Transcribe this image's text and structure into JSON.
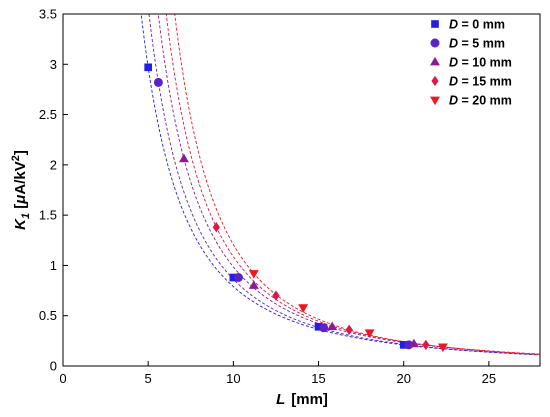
{
  "chart_data": {
    "type": "scatter",
    "xlabel": {
      "var": "L",
      "unit": "[mm]"
    },
    "ylabel": {
      "var": "K",
      "sub": "1",
      "unit_open": " [",
      "mu": "μ",
      "unit_mid": "A/kV",
      "sup": "2",
      "unit_close": "]"
    },
    "xlim": [
      0,
      28
    ],
    "ylim": [
      0,
      3.5
    ],
    "xticks": [
      0,
      5,
      10,
      15,
      20,
      25
    ],
    "yticks": [
      0,
      0.5,
      1,
      1.5,
      2,
      2.5,
      3,
      3.5
    ],
    "xtick_labels": [
      "0",
      "5",
      "10",
      "15",
      "20",
      "25"
    ],
    "ytick_labels": [
      "0",
      "0.5",
      "1",
      "1.5",
      "2",
      "2.5",
      "3",
      "3.5"
    ],
    "legend_position": "top-right",
    "grid": false,
    "fit_lines": "dashed curves, one per series",
    "series": [
      {
        "var": "D",
        "name": " = 0 mm",
        "marker": "square",
        "color": "#1f1fe6",
        "x": [
          5.0,
          10.0,
          15.0,
          20.0
        ],
        "y": [
          2.97,
          0.88,
          0.39,
          0.21
        ],
        "fit_shift": 0.0
      },
      {
        "var": "D",
        "name": " = 5 mm",
        "marker": "circle",
        "color": "#5a22c8",
        "x": [
          5.6,
          10.3,
          15.3,
          20.3
        ],
        "y": [
          2.82,
          0.88,
          0.38,
          0.21
        ],
        "fit_shift": 0.35
      },
      {
        "var": "D",
        "name": " = 10 mm",
        "marker": "triangle-up",
        "color": "#8a1a9a",
        "x": [
          7.1,
          11.2,
          15.8,
          20.6
        ],
        "y": [
          2.06,
          0.8,
          0.39,
          0.22
        ],
        "fit_shift": 0.7
      },
      {
        "var": "D",
        "name": " = 15 mm",
        "marker": "diamond",
        "color": "#e0184a",
        "x": [
          9.0,
          12.5,
          16.8,
          21.3
        ],
        "y": [
          1.38,
          0.7,
          0.36,
          0.21
        ],
        "fit_shift": 1.05
      },
      {
        "var": "D",
        "name": " = 20 mm",
        "marker": "triangle-down",
        "color": "#f2141e",
        "x": [
          11.2,
          14.1,
          18.0,
          22.3
        ],
        "y": [
          0.92,
          0.58,
          0.33,
          0.19
        ],
        "fit_shift": 1.4
      }
    ]
  }
}
